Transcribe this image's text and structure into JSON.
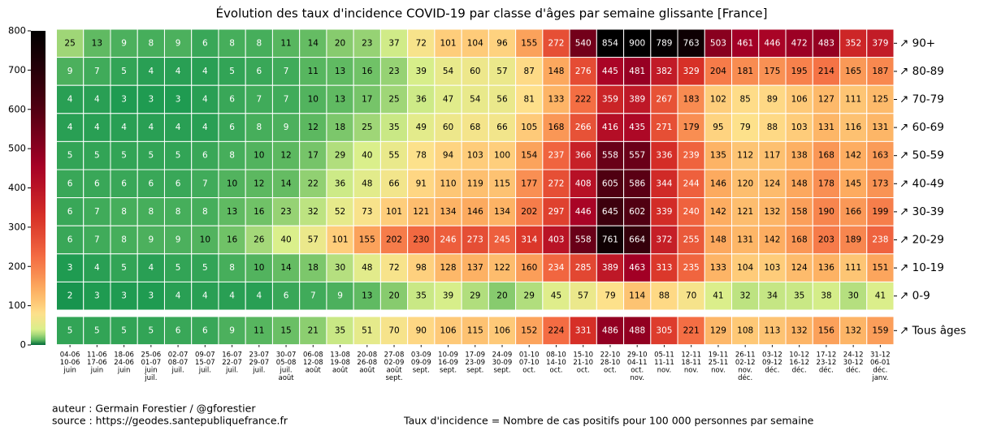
{
  "chart_data": {
    "type": "heatmap",
    "title": "Évolution des taux d'incidence COVID-19 par classe d'âges par semaine glissante [France]",
    "categories": [
      [
        "04-06",
        "10-06",
        "juin"
      ],
      [
        "11-06",
        "17-06",
        "juin"
      ],
      [
        "18-06",
        "24-06",
        "juin"
      ],
      [
        "25-06",
        "01-07",
        "juin",
        "juil."
      ],
      [
        "02-07",
        "08-07",
        "juil."
      ],
      [
        "09-07",
        "15-07",
        "juil."
      ],
      [
        "16-07",
        "22-07",
        "juil."
      ],
      [
        "23-07",
        "29-07",
        "juil."
      ],
      [
        "30-07",
        "05-08",
        "juil.",
        "août"
      ],
      [
        "06-08",
        "12-08",
        "août"
      ],
      [
        "13-08",
        "19-08",
        "août"
      ],
      [
        "20-08",
        "26-08",
        "août"
      ],
      [
        "27-08",
        "02-09",
        "août",
        "sept."
      ],
      [
        "03-09",
        "09-09",
        "sept."
      ],
      [
        "10-09",
        "16-09",
        "sept."
      ],
      [
        "17-09",
        "23-09",
        "sept."
      ],
      [
        "24-09",
        "30-09",
        "sept."
      ],
      [
        "01-10",
        "07-10",
        "oct."
      ],
      [
        "08-10",
        "14-10",
        "oct."
      ],
      [
        "15-10",
        "21-10",
        "oct."
      ],
      [
        "22-10",
        "28-10",
        "oct."
      ],
      [
        "29-10",
        "04-11",
        "oct.",
        "nov."
      ],
      [
        "05-11",
        "11-11",
        "nov."
      ],
      [
        "12-11",
        "18-11",
        "nov."
      ],
      [
        "19-11",
        "25-11",
        "nov."
      ],
      [
        "26-11",
        "02-12",
        "nov.",
        "déc."
      ],
      [
        "03-12",
        "09-12",
        "déc."
      ],
      [
        "10-12",
        "16-12",
        "déc."
      ],
      [
        "17-12",
        "23-12",
        "déc."
      ],
      [
        "24-12",
        "30-12",
        "déc."
      ],
      [
        "31-12",
        "06-01",
        "déc.",
        "janv."
      ]
    ],
    "series": [
      {
        "name": "↗ 90+",
        "values": [
          25,
          13,
          9,
          8,
          9,
          6,
          8,
          8,
          11,
          14,
          20,
          23,
          37,
          72,
          101,
          104,
          96,
          155,
          272,
          540,
          854,
          900,
          789,
          763,
          503,
          461,
          446,
          472,
          483,
          352,
          379
        ]
      },
      {
        "name": "↗ 80-89",
        "values": [
          9,
          7,
          5,
          4,
          4,
          4,
          5,
          6,
          7,
          11,
          13,
          16,
          23,
          39,
          54,
          60,
          57,
          87,
          148,
          276,
          445,
          481,
          382,
          329,
          204,
          181,
          175,
          195,
          214,
          165,
          187
        ]
      },
      {
        "name": "↗ 70-79",
        "values": [
          4,
          4,
          3,
          3,
          3,
          4,
          6,
          7,
          7,
          10,
          13,
          17,
          25,
          36,
          47,
          54,
          56,
          81,
          133,
          222,
          359,
          389,
          267,
          183,
          102,
          85,
          89,
          106,
          127,
          111,
          125
        ]
      },
      {
        "name": "↗ 60-69",
        "values": [
          4,
          4,
          4,
          4,
          4,
          4,
          6,
          8,
          9,
          12,
          18,
          25,
          35,
          49,
          60,
          68,
          66,
          105,
          168,
          266,
          416,
          435,
          271,
          179,
          95,
          79,
          88,
          103,
          131,
          116,
          131
        ]
      },
      {
        "name": "↗ 50-59",
        "values": [
          5,
          5,
          5,
          5,
          5,
          6,
          8,
          10,
          12,
          17,
          29,
          40,
          55,
          78,
          94,
          103,
          100,
          154,
          237,
          366,
          558,
          557,
          336,
          239,
          135,
          112,
          117,
          138,
          168,
          142,
          163
        ]
      },
      {
        "name": "↗ 40-49",
        "values": [
          6,
          6,
          6,
          6,
          6,
          7,
          10,
          12,
          14,
          22,
          36,
          48,
          66,
          91,
          110,
          119,
          115,
          177,
          272,
          408,
          605,
          586,
          344,
          244,
          146,
          120,
          124,
          148,
          178,
          145,
          173
        ]
      },
      {
        "name": "↗ 30-39",
        "values": [
          6,
          7,
          8,
          8,
          8,
          8,
          13,
          16,
          23,
          32,
          52,
          73,
          101,
          121,
          134,
          146,
          134,
          202,
          297,
          446,
          645,
          602,
          339,
          240,
          142,
          121,
          132,
          158,
          190,
          166,
          199
        ]
      },
      {
        "name": "↗ 20-29",
        "values": [
          6,
          7,
          8,
          9,
          9,
          10,
          16,
          26,
          40,
          57,
          101,
          155,
          202,
          230,
          246,
          273,
          245,
          314,
          403,
          558,
          761,
          664,
          372,
          255,
          148,
          131,
          142,
          168,
          203,
          189,
          238
        ]
      },
      {
        "name": "↗ 10-19",
        "values": [
          3,
          4,
          5,
          4,
          5,
          5,
          8,
          10,
          14,
          18,
          30,
          48,
          72,
          98,
          128,
          137,
          122,
          160,
          234,
          285,
          389,
          463,
          313,
          235,
          133,
          104,
          103,
          124,
          136,
          111,
          151
        ]
      },
      {
        "name": "↗ 0-9",
        "values": [
          2,
          3,
          3,
          3,
          4,
          4,
          4,
          4,
          6,
          7,
          9,
          13,
          20,
          35,
          39,
          29,
          20,
          29,
          45,
          57,
          79,
          114,
          88,
          70,
          41,
          32,
          34,
          35,
          38,
          30,
          41
        ]
      },
      {
        "name": "↗ Tous âges",
        "values": [
          5,
          5,
          5,
          5,
          6,
          6,
          9,
          11,
          15,
          21,
          35,
          51,
          70,
          90,
          106,
          115,
          106,
          152,
          224,
          331,
          486,
          488,
          305,
          221,
          129,
          108,
          113,
          132,
          156,
          132,
          159
        ]
      }
    ],
    "ylim": [
      0,
      800
    ],
    "yticks": [
      0,
      100,
      200,
      300,
      400,
      500,
      600,
      700,
      800
    ],
    "colors": [
      "#006837",
      "#1a9850",
      "#66bd63",
      "#d9ef8b",
      "#fee08b",
      "#fdae61",
      "#f46d43",
      "#d73027",
      "#a50026",
      "#4a0010",
      "#000000"
    ],
    "author": "auteur : Germain Forestier / @gforestier",
    "source": "source : https://geodes.santepubliquefrance.fr",
    "note": "Taux d'incidence = Nombre de cas positifs pour 100 000 personnes par semaine"
  }
}
